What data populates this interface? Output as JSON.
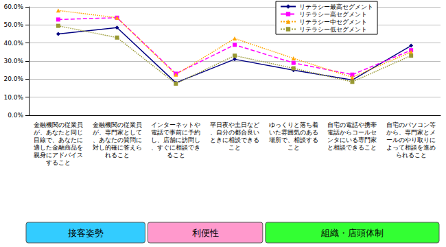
{
  "chart_data": {
    "type": "line",
    "categories": [
      "金融機関の従業員が、あなたと同じ目線で、あなたに適した金融商品を親身にアドバイスすること",
      "金融機関の従業員が、専門家として、あなたの質問に対し的確に答えられること",
      "インターネットや電話で事前に予約し、店舗に訪問し、すぐに相談できること",
      "平日夜や土日など、自分の都合良いときに相談できること",
      "ゆっくりと落ち着いた雰囲気のある場所で、相談すること",
      "自宅の電話や携帯電話からコールセンタにいる専門家と相談できること",
      "自宅のパソコン等から、専門家とメールのやり取りによって相談を進められること"
    ],
    "series": [
      {
        "name": "リテラシー最高セグメント",
        "color": "#000080",
        "marker": "diamond",
        "line_style": "solid",
        "values": [
          45,
          48.5,
          18,
          31,
          25,
          19.5,
          38.5
        ]
      },
      {
        "name": "リテラシー高セグメント",
        "color": "#ff00ff",
        "marker": "square",
        "line_style": "dashed",
        "values": [
          53,
          54,
          23,
          39,
          29,
          22.5,
          36
        ]
      },
      {
        "name": "リテラシー中セグメント",
        "color": "#ffa500",
        "marker": "triangle",
        "line_style": "dotted",
        "values": [
          58,
          54,
          22.5,
          42.5,
          31.5,
          21,
          35
        ]
      },
      {
        "name": "リテラシー低セグメント",
        "color": "#999933",
        "marker": "square",
        "line_style": "dotted",
        "values": [
          49.5,
          43,
          17.5,
          33,
          26,
          18.5,
          33
        ]
      }
    ],
    "ylim": [
      0,
      60
    ],
    "yticks": [
      {
        "value": 0,
        "label": "0.0%"
      },
      {
        "value": 10,
        "label": "10.0%"
      },
      {
        "value": 20,
        "label": "20.0%"
      },
      {
        "value": 30,
        "label": "30.0%"
      },
      {
        "value": 40,
        "label": "40.0%"
      },
      {
        "value": 50,
        "label": "50.0%"
      },
      {
        "value": 60,
        "label": "60.0%"
      }
    ],
    "grid": true,
    "legend": "upper right",
    "groups": [
      {
        "label": "接客姿勢",
        "count": 2
      },
      {
        "label": "利便性",
        "count": 2
      },
      {
        "label": "組織・店頭体制",
        "count": 3
      }
    ]
  }
}
